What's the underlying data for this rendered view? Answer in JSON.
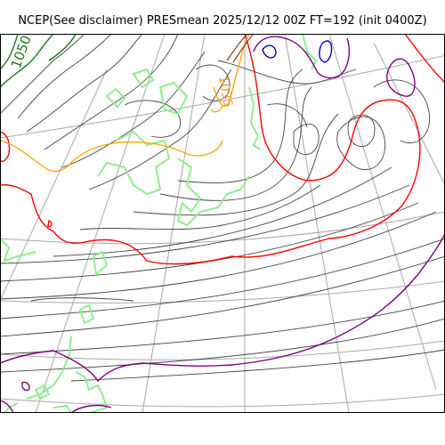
{
  "title": "NCEP(See disclaimer) PRESmean 2025/12/12 00Z FT=192 (init 0400Z)",
  "map": {
    "projection": "polar-stereographic",
    "field": "PRESmean",
    "contour_labels": [
      {
        "text": "1050",
        "color": "#1a7a1a"
      },
      {
        "text": "1035",
        "color": "#f0a020"
      }
    ],
    "colors": {
      "isobar": "#444444",
      "graticule": "#a8a8a8",
      "coast": "#90ee90",
      "red_isobar": "#ff0000",
      "orange_isobar": "#ffa500",
      "purple_isobar": "#800080",
      "blue_isobar": "#0000cd",
      "green_isobar": "#1a7a1a"
    }
  }
}
